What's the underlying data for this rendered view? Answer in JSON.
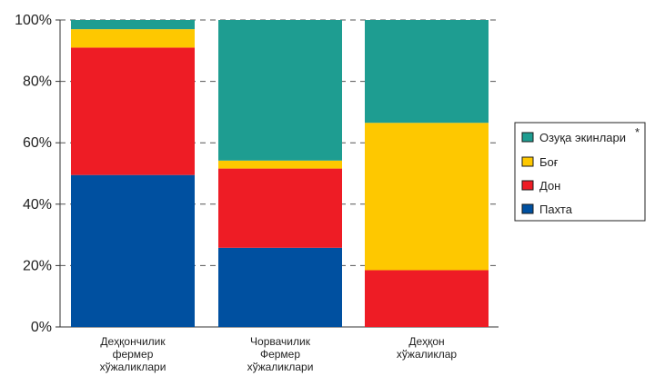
{
  "chart_data": {
    "type": "bar",
    "stacked": "percent",
    "categories": [
      [
        "Деҳқончилик",
        "фермер",
        "хўжаликлари"
      ],
      [
        "Чорвачилик",
        "Фермер",
        "хўжаликлари"
      ],
      [
        "Деҳқон",
        "хўжаликлар"
      ]
    ],
    "series": [
      {
        "name": "Пахта",
        "color": "#0050a0",
        "values": [
          49.5,
          25.8,
          0
        ]
      },
      {
        "name": "Дон",
        "color": "#ee1c25",
        "values": [
          41.5,
          25.8,
          18.5
        ]
      },
      {
        "name": "Боғ",
        "color": "#fec800",
        "values": [
          6.0,
          2.6,
          48.0
        ]
      },
      {
        "name": "Озуқа экинлари",
        "color": "#1e9d91",
        "values": [
          3.0,
          45.8,
          33.5
        ]
      }
    ],
    "legend_order": [
      "Озуқа экинлари",
      "Боғ",
      "Дон",
      "Пахта"
    ],
    "legend_marker": "*",
    "legend_position": "right",
    "yticks": [
      "0%",
      "20%",
      "40%",
      "60%",
      "80%",
      "100%"
    ],
    "ylim": [
      0,
      100
    ],
    "grid": "dashed-horizontal",
    "title": "",
    "xlabel": "",
    "ylabel": ""
  }
}
